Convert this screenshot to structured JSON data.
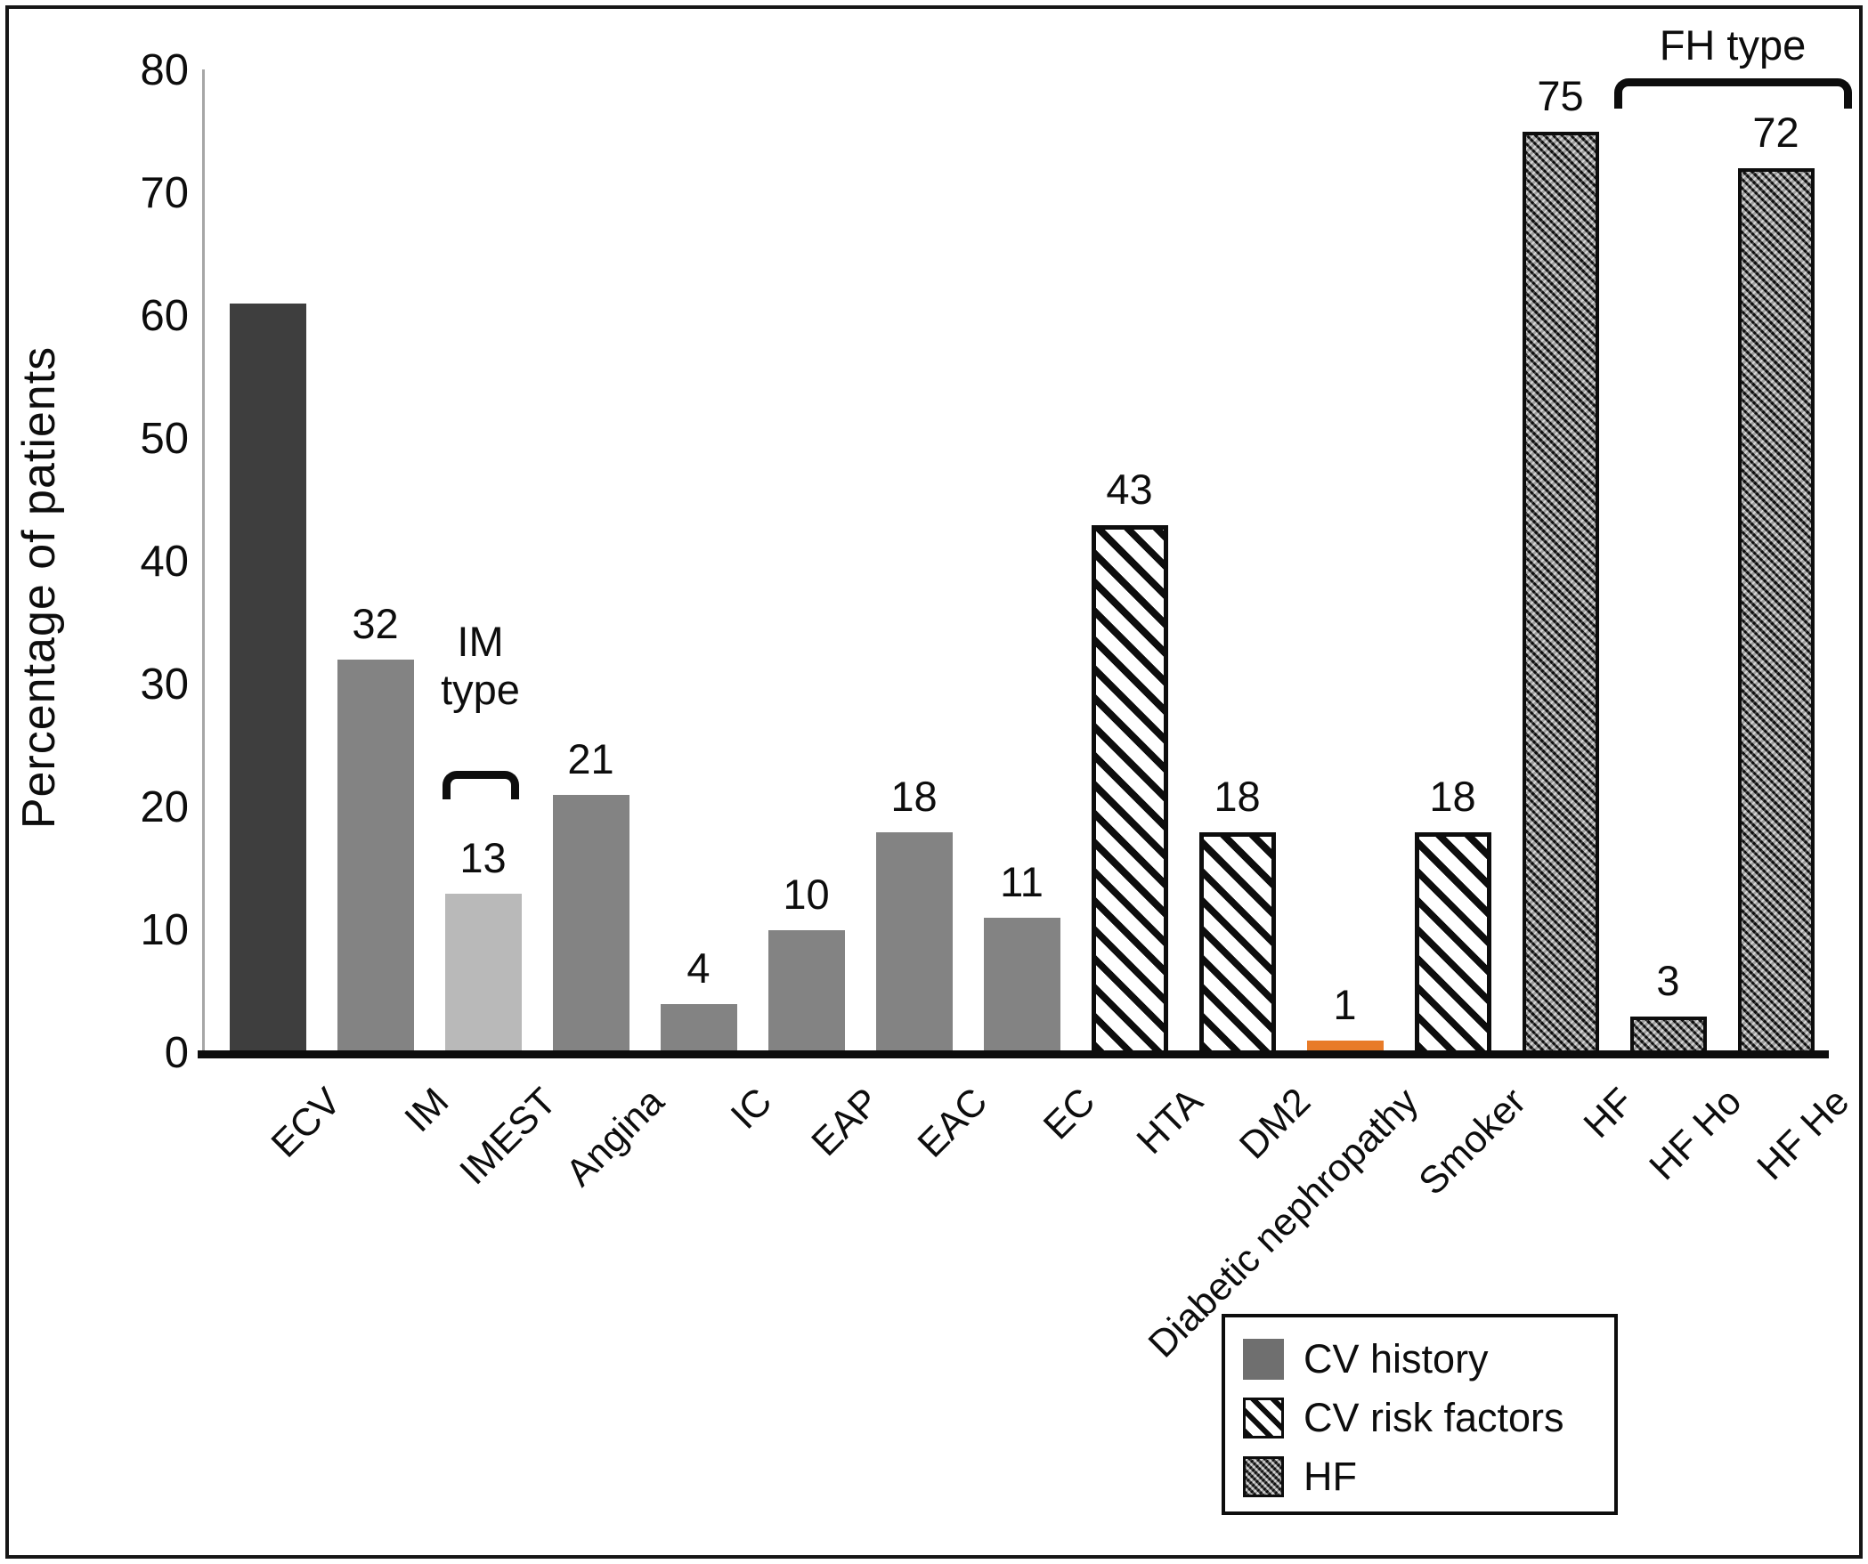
{
  "chart_data": {
    "type": "bar",
    "title": "",
    "ylabel": "Percentage of patients",
    "xlabel": "",
    "ylim": [
      0,
      80
    ],
    "yticks": [
      0,
      10,
      20,
      30,
      40,
      50,
      60,
      70,
      80
    ],
    "grid": false,
    "legend_position": "bottom-right",
    "categories": [
      "ECV",
      "IM",
      "IMEST",
      "Angina",
      "IC",
      "EAP",
      "EAC",
      "EC",
      "HTA",
      "DM2",
      "Diabetic nephropathy",
      "Smoker",
      "HF",
      "HF Ho",
      "HF He"
    ],
    "values": [
      61,
      32,
      13,
      21,
      4,
      10,
      18,
      11,
      43,
      18,
      1,
      18,
      75,
      3,
      72
    ],
    "bars": [
      {
        "label": "ECV",
        "value": 61,
        "style": "solid-dark",
        "show_value": false
      },
      {
        "label": "IM",
        "value": 32,
        "style": "solid",
        "show_value": true
      },
      {
        "label": "IMEST",
        "value": 13,
        "style": "solid-light",
        "show_value": true
      },
      {
        "label": "Angina",
        "value": 21,
        "style": "solid",
        "show_value": true
      },
      {
        "label": "IC",
        "value": 4,
        "style": "solid",
        "show_value": true
      },
      {
        "label": "EAP",
        "value": 10,
        "style": "solid",
        "show_value": true
      },
      {
        "label": "EAC",
        "value": 18,
        "style": "solid",
        "show_value": true
      },
      {
        "label": "EC",
        "value": 11,
        "style": "solid",
        "show_value": true
      },
      {
        "label": "HTA",
        "value": 43,
        "style": "hatch",
        "show_value": true
      },
      {
        "label": "DM2",
        "value": 18,
        "style": "hatch",
        "show_value": true
      },
      {
        "label": "Diabetic nephropathy",
        "value": 1,
        "style": "orange",
        "show_value": true
      },
      {
        "label": "Smoker",
        "value": 18,
        "style": "hatch",
        "show_value": true
      },
      {
        "label": "HF",
        "value": 75,
        "style": "weave",
        "show_value": true
      },
      {
        "label": "HF Ho",
        "value": 3,
        "style": "weave",
        "show_value": true
      },
      {
        "label": "HF He",
        "value": 72,
        "style": "weave",
        "show_value": true
      }
    ],
    "legend": [
      {
        "label": "CV history",
        "style": "solid"
      },
      {
        "label": "CV risk factors",
        "style": "hatch"
      },
      {
        "label": "HF",
        "style": "weave"
      }
    ],
    "annotations": [
      {
        "text": "IM\ntype",
        "from_slot": 2,
        "to_slot": 2
      },
      {
        "text": "FH type",
        "from_slot": 13,
        "to_slot": 14
      }
    ],
    "colors": {
      "solid_dark": "#3e3e3e",
      "solid": "#838383",
      "solid_light": "#b9b9b9",
      "orange": "#e87b28",
      "hatch_ink": "#0d0d0d",
      "legend_solid": "#6f6f6f",
      "axis_line": "#a6a6a6",
      "baseline": "#0d0d0d",
      "text": "#0d0d0d"
    }
  }
}
